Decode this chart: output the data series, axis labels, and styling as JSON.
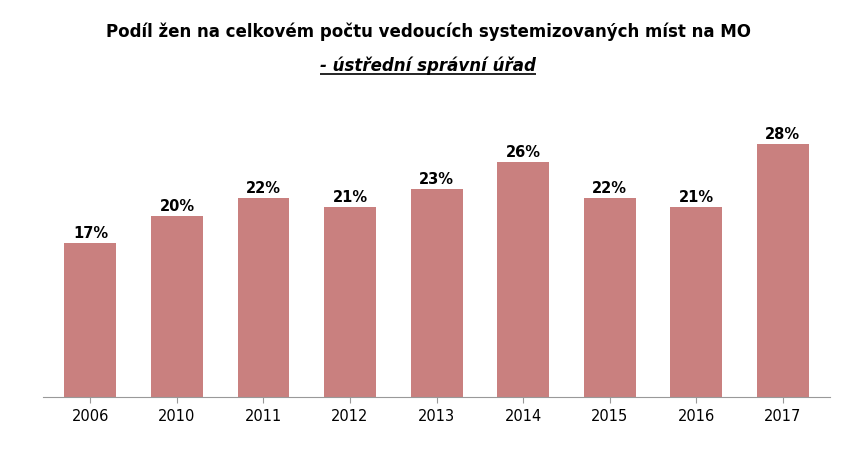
{
  "categories": [
    "2006",
    "2010",
    "2011",
    "2012",
    "2013",
    "2014",
    "2015",
    "2016",
    "2017"
  ],
  "values": [
    17,
    20,
    22,
    21,
    23,
    26,
    22,
    21,
    28
  ],
  "bar_color": "#c9807f",
  "title_line1": "Podíl žen na celkovém počtu vedoucích systemizovaných míst na MO",
  "title_line2": "- ústřední správní úřad",
  "ylim": [
    0,
    33
  ],
  "label_fontsize": 10.5,
  "title_fontsize": 12,
  "title2_fontsize": 12,
  "tick_fontsize": 10.5,
  "background_color": "#ffffff",
  "bar_width": 0.6,
  "bottom_spine_color": "#999999"
}
